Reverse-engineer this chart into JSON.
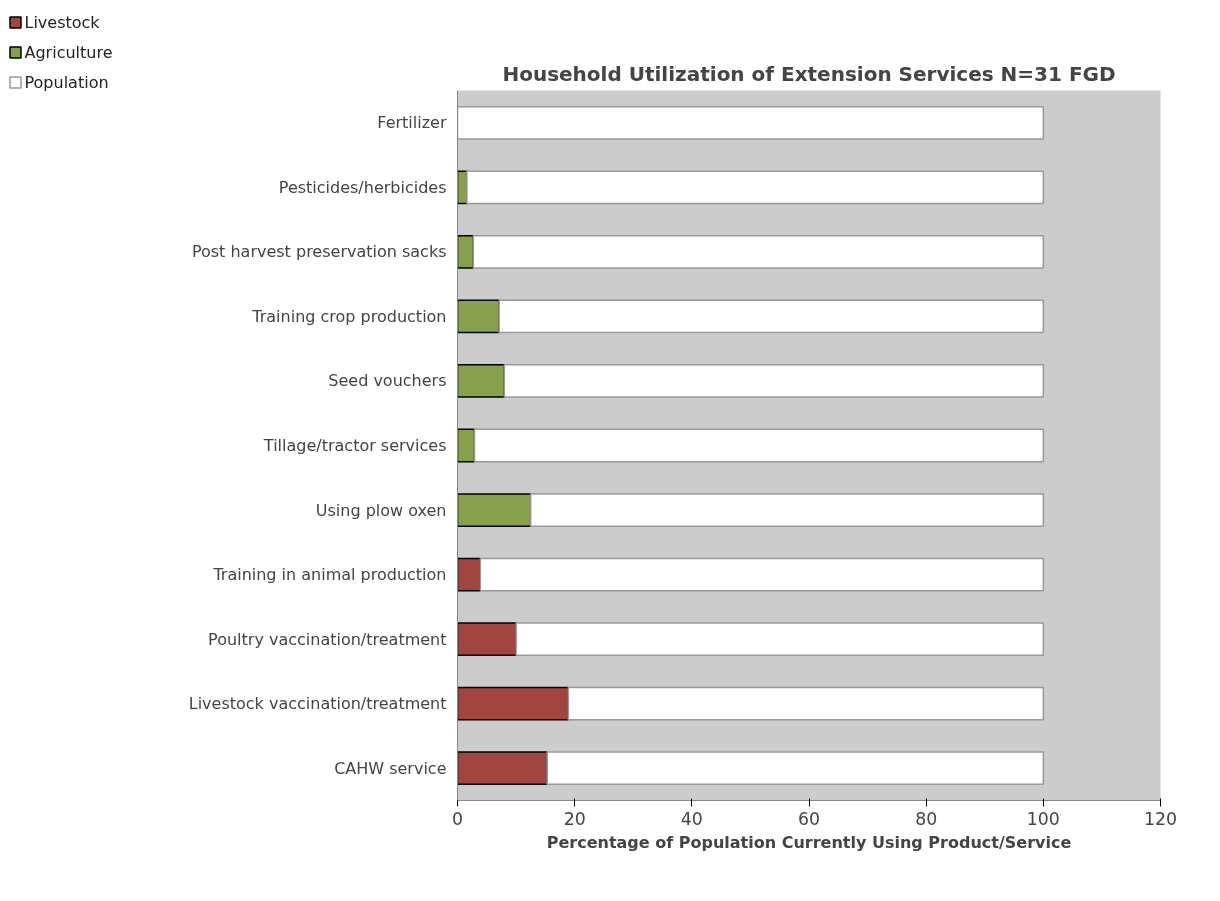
{
  "chart_data": {
    "type": "bar",
    "orientation": "horizontal",
    "stacked": true,
    "title": "Household Utilization of Extension Services N=31 FGD",
    "xlabel": "Percentage of Population Currently Using Product/Service",
    "categories": [
      "Fertilizer",
      "Pesticides/herbicides",
      "Post harvest preservation sacks",
      "Training crop production",
      "Seed vouchers",
      "Tillage/tractor services",
      "Using plow oxen",
      "Training in animal production",
      "Poultry vaccination/treatment",
      "Livestock vaccination/treatment",
      "CAHW service"
    ],
    "series": [
      {
        "name": "Livestock",
        "color": "#a0453f",
        "values": [
          null,
          null,
          null,
          null,
          null,
          null,
          null,
          3.9,
          10.0,
          18.9,
          15.3
        ]
      },
      {
        "name": "Agriculture",
        "color": "#86a04b",
        "values": [
          null,
          1.6,
          2.7,
          7.1,
          8.0,
          2.9,
          12.5,
          null,
          null,
          null,
          null
        ]
      },
      {
        "name": "Population",
        "color": "#ffffff",
        "values": [
          100,
          98.4,
          97.3,
          92.9,
          92.0,
          97.1,
          87.5,
          96.1,
          90.0,
          81.1,
          84.7
        ]
      }
    ],
    "xlim": [
      0,
      120
    ],
    "xticks": [
      0,
      20,
      40,
      60,
      80,
      100,
      120
    ],
    "grid": false,
    "legend": "top left"
  }
}
